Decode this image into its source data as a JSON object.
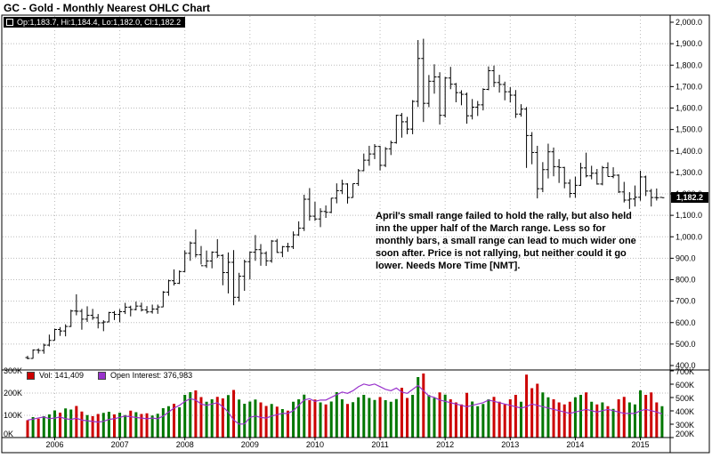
{
  "title": "GC - Gold - Monthly Nearest OHLC Chart",
  "quote_box": {
    "text": "Op:1,183.7, Hi:1,184.4, Lo:1,182.0, Cl:1,182.2"
  },
  "price_tag": "1,182.2",
  "legend": {
    "vol": "Vol: 141,409",
    "oi": "Open Interest: 376,983"
  },
  "annotation": {
    "lines": [
      "April's small range failed to hold the rally, but also held",
      "inn the upper half of the March range.  Less so for",
      "monthly bars, a small range can lead to much wider one",
      "soon after.  Price is not rallying, but neither could it go",
      "lower.  Needs More Time [NMT]."
    ]
  },
  "colors": {
    "up_volume": "#007700",
    "down_volume": "#cc0000",
    "open_interest_line": "#9933cc",
    "ohlc_bar": "#000000",
    "grid": "#bbbbbb",
    "frame": "#000000",
    "tag_bg": "#000000",
    "tag_text": "#ffffff"
  },
  "chart_data": {
    "type": "ohlc",
    "title": "GC - Gold - Monthly Nearest OHLC Chart",
    "frequency": "monthly",
    "start_month": "2005-08",
    "x_tick_labels": [
      "2006",
      "2007",
      "2008",
      "2009",
      "2010",
      "2011",
      "2012",
      "2013",
      "2014",
      "2015"
    ],
    "price_axis": {
      "min": 400,
      "max": 2000,
      "tick_values": [
        2000,
        1900,
        1800,
        1700,
        1600,
        1500,
        1400,
        1300,
        1200,
        1100,
        1000,
        900,
        800,
        700,
        600,
        500,
        400
      ],
      "tick_labels": [
        "2,000.0",
        "1,900.0",
        "1,800.0",
        "1,700.0",
        "1,600.0",
        "1,500.0",
        "1,400.0",
        "1,300.0",
        "1,200.0",
        "1,100.0",
        "1,000.0",
        "900.0",
        "800.0",
        "700.0",
        "600.0",
        "500.0",
        "400.0"
      ]
    },
    "volume_axis": {
      "tick_values": [
        300,
        200,
        100,
        0
      ],
      "tick_labels": [
        "300K",
        "200K",
        "100K",
        "0K"
      ]
    },
    "open_interest_axis": {
      "min": 200,
      "max": 700,
      "tick_values": [
        700,
        600,
        500,
        400,
        300,
        200
      ],
      "tick_labels": [
        "700K",
        "600K",
        "500K",
        "400K",
        "300K",
        "200K"
      ]
    },
    "last": {
      "open": "1,183.7",
      "high": "1,184.4",
      "low": "1,182.0",
      "close": "1,182.2",
      "volume": "141,409",
      "open_interest": "376,983"
    },
    "ohlc": [
      [
        437,
        445,
        429,
        433
      ],
      [
        433,
        475,
        432,
        472
      ],
      [
        472,
        480,
        456,
        470
      ],
      [
        470,
        502,
        455,
        495
      ],
      [
        495,
        544,
        489,
        517
      ],
      [
        517,
        572,
        517,
        568
      ],
      [
        568,
        579,
        538,
        561
      ],
      [
        561,
        592,
        536,
        582
      ],
      [
        582,
        660,
        580,
        654
      ],
      [
        654,
        732,
        634,
        653
      ],
      [
        653,
        664,
        567,
        616
      ],
      [
        616,
        676,
        603,
        634
      ],
      [
        634,
        664,
        613,
        623
      ],
      [
        623,
        640,
        573,
        599
      ],
      [
        599,
        611,
        560,
        603
      ],
      [
        603,
        650,
        602,
        647
      ],
      [
        647,
        654,
        612,
        638
      ],
      [
        638,
        663,
        602,
        651
      ],
      [
        651,
        692,
        640,
        672
      ],
      [
        672,
        679,
        629,
        661
      ],
      [
        661,
        698,
        657,
        677
      ],
      [
        677,
        693,
        652,
        659
      ],
      [
        659,
        677,
        642,
        650
      ],
      [
        650,
        684,
        642,
        663
      ],
      [
        663,
        684,
        641,
        673
      ],
      [
        673,
        747,
        672,
        742
      ],
      [
        742,
        800,
        725,
        795
      ],
      [
        795,
        848,
        773,
        783
      ],
      [
        783,
        843,
        780,
        838
      ],
      [
        838,
        937,
        836,
        923
      ],
      [
        923,
        978,
        888,
        971
      ],
      [
        971,
        1034,
        904,
        916
      ],
      [
        916,
        957,
        871,
        865
      ],
      [
        865,
        936,
        855,
        887
      ],
      [
        887,
        932,
        853,
        928
      ],
      [
        928,
        989,
        902,
        913
      ],
      [
        913,
        918,
        774,
        833
      ],
      [
        833,
        927,
        736,
        881
      ],
      [
        881,
        938,
        681,
        718
      ],
      [
        718,
        832,
        698,
        816
      ],
      [
        816,
        893,
        748,
        884
      ],
      [
        884,
        931,
        802,
        928
      ],
      [
        928,
        1008,
        888,
        940
      ],
      [
        940,
        966,
        865,
        923
      ],
      [
        923,
        932,
        864,
        888
      ],
      [
        888,
        985,
        879,
        980
      ],
      [
        980,
        990,
        925,
        927
      ],
      [
        927,
        957,
        905,
        954
      ],
      [
        954,
        972,
        930,
        953
      ],
      [
        953,
        1025,
        943,
        1009
      ],
      [
        1009,
        1072,
        1004,
        1040
      ],
      [
        1040,
        1196,
        1027,
        1175
      ],
      [
        1175,
        1227,
        1075,
        1096
      ],
      [
        1096,
        1163,
        1074,
        1083
      ],
      [
        1083,
        1133,
        1045,
        1118
      ],
      [
        1118,
        1146,
        1088,
        1114
      ],
      [
        1114,
        1181,
        1110,
        1180
      ],
      [
        1180,
        1249,
        1156,
        1215
      ],
      [
        1215,
        1266,
        1199,
        1246
      ],
      [
        1246,
        1249,
        1155,
        1183
      ],
      [
        1183,
        1248,
        1182,
        1248
      ],
      [
        1248,
        1316,
        1237,
        1308
      ],
      [
        1308,
        1388,
        1306,
        1357
      ],
      [
        1357,
        1424,
        1331,
        1386
      ],
      [
        1386,
        1432,
        1362,
        1421
      ],
      [
        1421,
        1424,
        1309,
        1333
      ],
      [
        1333,
        1418,
        1325,
        1410
      ],
      [
        1410,
        1448,
        1381,
        1439
      ],
      [
        1439,
        1569,
        1434,
        1566
      ],
      [
        1566,
        1577,
        1462,
        1536
      ],
      [
        1536,
        1559,
        1478,
        1502
      ],
      [
        1502,
        1637,
        1478,
        1631
      ],
      [
        1631,
        1917,
        1605,
        1831
      ],
      [
        1831,
        1923,
        1535,
        1622
      ],
      [
        1622,
        1754,
        1604,
        1725
      ],
      [
        1725,
        1804,
        1667,
        1745
      ],
      [
        1745,
        1767,
        1523,
        1566
      ],
      [
        1566,
        1745,
        1556,
        1740
      ],
      [
        1740,
        1792,
        1688,
        1711
      ],
      [
        1711,
        1717,
        1627,
        1672
      ],
      [
        1672,
        1683,
        1613,
        1664
      ],
      [
        1664,
        1672,
        1527,
        1564
      ],
      [
        1564,
        1642,
        1547,
        1604
      ],
      [
        1604,
        1633,
        1563,
        1615
      ],
      [
        1615,
        1692,
        1589,
        1687
      ],
      [
        1687,
        1794,
        1683,
        1774
      ],
      [
        1774,
        1798,
        1698,
        1719
      ],
      [
        1719,
        1755,
        1672,
        1710
      ],
      [
        1710,
        1723,
        1636,
        1676
      ],
      [
        1676,
        1697,
        1626,
        1660
      ],
      [
        1660,
        1684,
        1554,
        1572
      ],
      [
        1572,
        1618,
        1560,
        1595
      ],
      [
        1595,
        1605,
        1321,
        1472
      ],
      [
        1472,
        1488,
        1338,
        1393
      ],
      [
        1393,
        1424,
        1179,
        1224
      ],
      [
        1224,
        1348,
        1208,
        1313
      ],
      [
        1313,
        1434,
        1272,
        1396
      ],
      [
        1396,
        1416,
        1282,
        1327
      ],
      [
        1327,
        1362,
        1251,
        1323
      ],
      [
        1323,
        1326,
        1226,
        1250
      ],
      [
        1250,
        1268,
        1182,
        1202
      ],
      [
        1202,
        1280,
        1182,
        1240
      ],
      [
        1240,
        1345,
        1237,
        1321
      ],
      [
        1321,
        1392,
        1277,
        1284
      ],
      [
        1284,
        1331,
        1268,
        1296
      ],
      [
        1296,
        1316,
        1243,
        1246
      ],
      [
        1246,
        1330,
        1240,
        1322
      ],
      [
        1322,
        1347,
        1281,
        1281
      ],
      [
        1281,
        1324,
        1273,
        1287
      ],
      [
        1287,
        1291,
        1204,
        1209
      ],
      [
        1209,
        1256,
        1160,
        1171
      ],
      [
        1171,
        1208,
        1130,
        1176
      ],
      [
        1176,
        1239,
        1141,
        1184
      ],
      [
        1184,
        1308,
        1168,
        1279
      ],
      [
        1279,
        1285,
        1190,
        1213
      ],
      [
        1213,
        1223,
        1141,
        1183
      ],
      [
        1183,
        1225,
        1169,
        1182
      ],
      [
        1183.7,
        1184.4,
        1182,
        1182.2
      ]
    ],
    "volume_k": [
      78,
      92,
      85,
      96,
      104,
      122,
      112,
      131,
      126,
      142,
      117,
      101,
      96,
      106,
      111,
      116,
      104,
      112,
      101,
      121,
      114,
      106,
      109,
      99,
      107,
      132,
      141,
      152,
      136,
      192,
      204,
      212,
      182,
      161,
      172,
      183,
      176,
      191,
      214,
      171,
      152,
      162,
      171,
      158,
      142,
      151,
      139,
      128,
      121,
      161,
      172,
      193,
      168,
      171,
      158,
      149,
      162,
      204,
      172,
      151,
      159,
      181,
      192,
      178,
      169,
      182,
      168,
      161,
      173,
      224,
      178,
      192,
      272,
      288,
      191,
      178,
      203,
      193,
      172,
      158,
      149,
      201,
      162,
      141,
      151,
      172,
      183,
      161,
      149,
      172,
      192,
      161,
      283,
      222,
      242,
      203,
      181,
      172,
      158,
      149,
      161,
      181,
      192,
      203,
      161,
      149,
      158,
      141,
      129,
      172,
      183,
      158,
      149,
      212,
      192,
      203,
      158,
      141
    ],
    "open_interest_k": [
      331,
      338,
      347,
      354,
      342,
      346,
      354,
      341,
      336,
      345,
      331,
      326,
      321,
      316,
      321,
      336,
      341,
      351,
      361,
      356,
      351,
      346,
      341,
      346,
      341,
      361,
      391,
      421,
      441,
      471,
      491,
      481,
      451,
      441,
      451,
      461,
      431,
      391,
      331,
      301,
      302,
      351,
      361,
      351,
      346,
      361,
      371,
      381,
      381,
      401,
      441,
      481,
      491,
      471,
      481,
      481,
      501,
      521,
      541,
      531,
      551,
      581,
      601,
      591,
      601,
      581,
      561,
      551,
      571,
      541,
      531,
      561,
      591,
      551,
      511,
      501,
      481,
      471,
      461,
      451,
      441,
      431,
      441,
      451,
      461,
      481,
      471,
      461,
      451,
      441,
      431,
      421,
      431,
      451,
      441,
      431,
      421,
      411,
      401,
      391,
      381,
      391,
      401,
      411,
      401,
      391,
      401,
      411,
      401,
      391,
      381,
      381,
      381,
      401,
      411,
      401,
      391,
      377
    ]
  }
}
